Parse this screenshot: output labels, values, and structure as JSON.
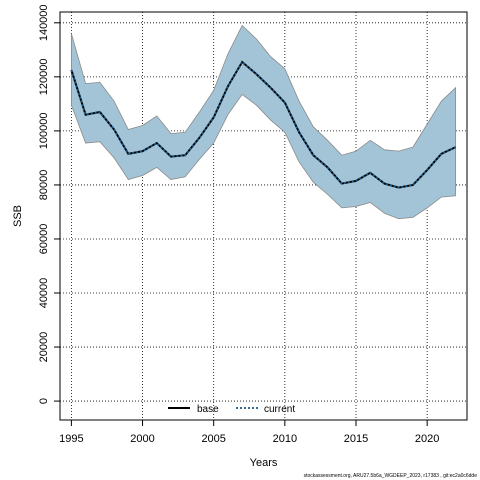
{
  "chart_data": {
    "type": "line",
    "xlabel": "Years",
    "ylabel": "SSB",
    "xlim": [
      1994.2,
      2022.8
    ],
    "ylim": [
      -7000,
      144000
    ],
    "xticks": [
      1995,
      2000,
      2005,
      2010,
      2015,
      2020
    ],
    "yticks": [
      0,
      20000,
      40000,
      60000,
      80000,
      100000,
      120000,
      140000
    ],
    "grid": true,
    "legend_position": "bottom-center",
    "x": [
      1995,
      1996,
      1997,
      1998,
      1999,
      2000,
      2001,
      2002,
      2003,
      2004,
      2005,
      2006,
      2007,
      2008,
      2009,
      2010,
      2011,
      2012,
      2013,
      2014,
      2015,
      2016,
      2017,
      2018,
      2019,
      2020,
      2021,
      2022
    ],
    "band": {
      "fill": "#a3c4d6",
      "stroke": "#8a8a8a",
      "upper": [
        136000,
        117500,
        118000,
        111000,
        100500,
        102000,
        105500,
        99000,
        99500,
        107000,
        115000,
        128500,
        139000,
        134000,
        127500,
        123000,
        111000,
        101500,
        96500,
        91000,
        92500,
        96500,
        93000,
        92500,
        94000,
        102500,
        111000,
        116000
      ],
      "lower": [
        109500,
        95500,
        96000,
        90000,
        82000,
        83500,
        86500,
        82000,
        83000,
        89500,
        95500,
        106000,
        113500,
        109500,
        104000,
        99500,
        88500,
        81000,
        76500,
        71500,
        72000,
        73500,
        69500,
        67500,
        68000,
        71500,
        75500,
        76000
      ]
    },
    "series": [
      {
        "name": "base",
        "style": "solid",
        "color": "#000000",
        "values": [
          122500,
          106000,
          107000,
          100500,
          91500,
          92500,
          95500,
          90500,
          91000,
          97500,
          105000,
          116500,
          125500,
          121000,
          116000,
          110500,
          99500,
          91000,
          86500,
          80500,
          81500,
          84500,
          80500,
          79000,
          80000,
          85500,
          91500,
          94000
        ]
      },
      {
        "name": "current",
        "style": "dotted",
        "color": "#1a5a8c",
        "values": [
          122500,
          106000,
          107000,
          100500,
          91500,
          92500,
          95500,
          90500,
          91000,
          97500,
          105000,
          116500,
          125500,
          121000,
          116000,
          110500,
          99500,
          91000,
          86500,
          80500,
          81500,
          84500,
          80500,
          79000,
          80000,
          85500,
          91500,
          94000
        ]
      }
    ]
  },
  "footer_text": "stockassessment.org, ARU27.5b6a_WGDEEP_2023, r17383 , git:ec2a0c6dde"
}
